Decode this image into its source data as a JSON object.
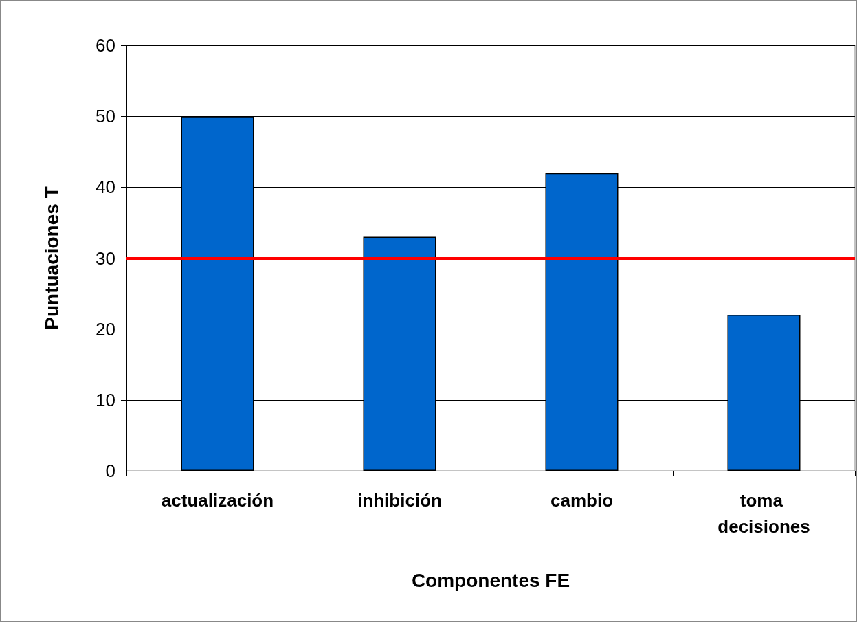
{
  "chart_data": {
    "type": "bar",
    "xlabel": "Componentes FE",
    "ylabel": "Puntuaciones T",
    "categories": [
      "actualización",
      "inhibición",
      "cambio",
      "toma decisiones"
    ],
    "values": [
      50,
      33,
      42,
      22
    ],
    "color": "#0066cc",
    "ylim": [
      0,
      60
    ],
    "yticks": [
      0,
      10,
      20,
      30,
      40,
      50,
      60
    ],
    "grid": "y",
    "ref_lines": [
      {
        "axis": "y",
        "value": 30,
        "color": "#ff0000"
      }
    ]
  }
}
